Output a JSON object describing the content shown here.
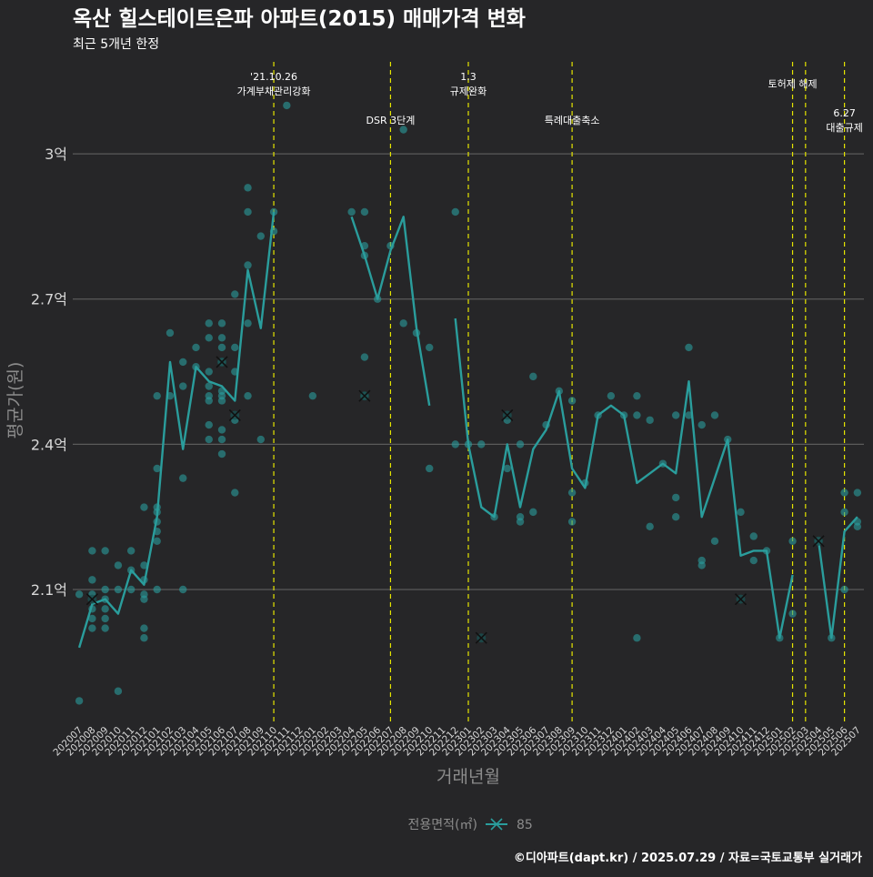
{
  "title": "옥산 힐스테이트은파 아파트(2015) 매매가격 변화",
  "subtitle": "최근 5개년 한정",
  "footer": "©디아파트(dapt.kr) / 2025.07.29 / 자료=국토교통부 실거래가",
  "colors": {
    "background": "#262628",
    "grid": "#5a5a5a",
    "series": "#2a9d9c",
    "event_line": "#e6e600",
    "tick_text": "#d8d8d8",
    "axis_title": "#8c8c8c"
  },
  "chart_data": {
    "type": "line",
    "xlabel": "거래년월",
    "ylabel": "평균가(원)",
    "grid": true,
    "legend": {
      "title": "전용면적(㎡)",
      "position": "bottom"
    },
    "y_ticks": [
      {
        "value": 2.1,
        "label": "2.1억"
      },
      {
        "value": 2.4,
        "label": "2.4억"
      },
      {
        "value": 2.7,
        "label": "2.7억"
      },
      {
        "value": 3.0,
        "label": "3억"
      }
    ],
    "ylim": [
      1.82,
      3.19
    ],
    "categories": [
      "202007",
      "202008",
      "202009",
      "202010",
      "202011",
      "202012",
      "202101",
      "202102",
      "202103",
      "202104",
      "202105",
      "202106",
      "202107",
      "202108",
      "202109",
      "202110",
      "202111",
      "202112",
      "202201",
      "202202",
      "202203",
      "202204",
      "202205",
      "202206",
      "202207",
      "202208",
      "202209",
      "202210",
      "202211",
      "202212",
      "202301",
      "202302",
      "202303",
      "202304",
      "202305",
      "202306",
      "202307",
      "202308",
      "202309",
      "202310",
      "202311",
      "202312",
      "202401",
      "202402",
      "202403",
      "202404",
      "202405",
      "202406",
      "202407",
      "202408",
      "202409",
      "202410",
      "202411",
      "202412",
      "202501",
      "202502",
      "202503",
      "202504",
      "202505",
      "202506",
      "202507"
    ],
    "series": [
      {
        "name": "85",
        "values": [
          1.98,
          2.07,
          2.08,
          2.05,
          2.14,
          2.11,
          2.25,
          2.57,
          2.39,
          2.56,
          2.53,
          2.52,
          2.49,
          2.76,
          2.64,
          2.88,
          null,
          null,
          null,
          null,
          null,
          2.87,
          2.79,
          2.7,
          2.8,
          2.87,
          2.64,
          2.48,
          null,
          2.66,
          2.4,
          2.27,
          2.25,
          2.4,
          2.27,
          2.39,
          2.43,
          2.51,
          2.35,
          2.31,
          2.46,
          2.48,
          2.46,
          2.32,
          2.34,
          2.36,
          2.34,
          2.53,
          2.25,
          2.33,
          2.41,
          2.17,
          2.18,
          2.18,
          2.0,
          2.13,
          null,
          2.2,
          2.0,
          2.22,
          2.25
        ]
      }
    ],
    "points": [
      [
        "202007",
        2.09
      ],
      [
        "202007",
        1.87
      ],
      [
        "202008",
        2.09
      ],
      [
        "202008",
        2.12
      ],
      [
        "202008",
        2.06
      ],
      [
        "202008",
        2.04
      ],
      [
        "202008",
        2.02
      ],
      [
        "202008",
        2.18
      ],
      [
        "202009",
        2.1
      ],
      [
        "202009",
        2.08
      ],
      [
        "202009",
        2.06
      ],
      [
        "202009",
        2.04
      ],
      [
        "202009",
        2.02
      ],
      [
        "202009",
        2.18
      ],
      [
        "202010",
        1.89
      ],
      [
        "202010",
        2.1
      ],
      [
        "202010",
        2.15
      ],
      [
        "202011",
        2.1
      ],
      [
        "202011",
        2.18
      ],
      [
        "202011",
        2.14
      ],
      [
        "202012",
        2.02
      ],
      [
        "202012",
        2.0
      ],
      [
        "202012",
        2.08
      ],
      [
        "202012",
        2.09
      ],
      [
        "202012",
        2.12
      ],
      [
        "202012",
        2.15
      ],
      [
        "202012",
        2.27
      ],
      [
        "202101",
        2.1
      ],
      [
        "202101",
        2.22
      ],
      [
        "202101",
        2.2
      ],
      [
        "202101",
        2.24
      ],
      [
        "202101",
        2.26
      ],
      [
        "202101",
        2.27
      ],
      [
        "202101",
        2.35
      ],
      [
        "202101",
        2.5
      ],
      [
        "202102",
        2.5
      ],
      [
        "202102",
        2.63
      ],
      [
        "202103",
        2.1
      ],
      [
        "202103",
        2.33
      ],
      [
        "202103",
        2.52
      ],
      [
        "202103",
        2.57
      ],
      [
        "202104",
        2.56
      ],
      [
        "202104",
        2.6
      ],
      [
        "202105",
        2.41
      ],
      [
        "202105",
        2.44
      ],
      [
        "202105",
        2.49
      ],
      [
        "202105",
        2.5
      ],
      [
        "202105",
        2.52
      ],
      [
        "202105",
        2.55
      ],
      [
        "202105",
        2.62
      ],
      [
        "202105",
        2.65
      ],
      [
        "202106",
        2.38
      ],
      [
        "202106",
        2.41
      ],
      [
        "202106",
        2.43
      ],
      [
        "202106",
        2.49
      ],
      [
        "202106",
        2.5
      ],
      [
        "202106",
        2.51
      ],
      [
        "202106",
        2.57
      ],
      [
        "202106",
        2.6
      ],
      [
        "202106",
        2.62
      ],
      [
        "202106",
        2.65
      ],
      [
        "202107",
        2.3
      ],
      [
        "202107",
        2.45
      ],
      [
        "202107",
        2.55
      ],
      [
        "202107",
        2.6
      ],
      [
        "202107",
        2.71
      ],
      [
        "202108",
        2.5
      ],
      [
        "202108",
        2.65
      ],
      [
        "202108",
        2.77
      ],
      [
        "202108",
        2.88
      ],
      [
        "202108",
        2.93
      ],
      [
        "202109",
        2.41
      ],
      [
        "202109",
        2.83
      ],
      [
        "202110",
        2.88
      ],
      [
        "202110",
        2.84
      ],
      [
        "202111",
        3.1
      ],
      [
        "202201",
        2.5
      ],
      [
        "202204",
        2.88
      ],
      [
        "202205",
        2.5
      ],
      [
        "202205",
        2.58
      ],
      [
        "202205",
        2.79
      ],
      [
        "202205",
        2.81
      ],
      [
        "202205",
        2.88
      ],
      [
        "202206",
        2.7
      ],
      [
        "202207",
        2.81
      ],
      [
        "202208",
        2.65
      ],
      [
        "202208",
        3.05
      ],
      [
        "202209",
        2.63
      ],
      [
        "202210",
        2.35
      ],
      [
        "202210",
        2.6
      ],
      [
        "202212",
        2.4
      ],
      [
        "202212",
        2.88
      ],
      [
        "202301",
        2.4
      ],
      [
        "202302",
        2.4
      ],
      [
        "202303",
        2.25
      ],
      [
        "202304",
        2.35
      ],
      [
        "202304",
        2.45
      ],
      [
        "202305",
        2.24
      ],
      [
        "202305",
        2.25
      ],
      [
        "202305",
        2.4
      ],
      [
        "202306",
        2.26
      ],
      [
        "202306",
        2.54
      ],
      [
        "202307",
        2.44
      ],
      [
        "202308",
        2.51
      ],
      [
        "202309",
        2.24
      ],
      [
        "202309",
        2.3
      ],
      [
        "202309",
        2.49
      ],
      [
        "202310",
        2.32
      ],
      [
        "202311",
        2.46
      ],
      [
        "202312",
        2.5
      ],
      [
        "202401",
        2.46
      ],
      [
        "202402",
        2.0
      ],
      [
        "202402",
        2.46
      ],
      [
        "202402",
        2.5
      ],
      [
        "202403",
        2.23
      ],
      [
        "202403",
        2.45
      ],
      [
        "202404",
        2.36
      ],
      [
        "202405",
        2.25
      ],
      [
        "202405",
        2.29
      ],
      [
        "202405",
        2.46
      ],
      [
        "202406",
        2.46
      ],
      [
        "202406",
        2.6
      ],
      [
        "202407",
        2.15
      ],
      [
        "202407",
        2.16
      ],
      [
        "202407",
        2.44
      ],
      [
        "202408",
        2.2
      ],
      [
        "202408",
        2.46
      ],
      [
        "202409",
        2.41
      ],
      [
        "202410",
        2.26
      ],
      [
        "202411",
        2.16
      ],
      [
        "202411",
        2.21
      ],
      [
        "202412",
        2.18
      ],
      [
        "202501",
        2.0
      ],
      [
        "202502",
        2.05
      ],
      [
        "202502",
        2.2
      ],
      [
        "202504",
        2.2
      ],
      [
        "202505",
        2.0
      ],
      [
        "202506",
        2.1
      ],
      [
        "202506",
        2.26
      ],
      [
        "202506",
        2.3
      ],
      [
        "202507",
        2.23
      ],
      [
        "202507",
        2.24
      ],
      [
        "202507",
        2.3
      ]
    ],
    "markers": [
      [
        "202008",
        2.08
      ],
      [
        "202106",
        2.57
      ],
      [
        "202107",
        2.46
      ],
      [
        "202205",
        2.5
      ],
      [
        "202302",
        2.0
      ],
      [
        "202304",
        2.46
      ],
      [
        "202410",
        2.08
      ],
      [
        "202504",
        2.2
      ]
    ],
    "events": [
      {
        "x": "202110",
        "lines": [
          "'21.10.26",
          "가계부채관리강화"
        ],
        "row": 0
      },
      {
        "x": "202207",
        "lines": [
          "DSR 3단계"
        ],
        "row": 1
      },
      {
        "x": "202301",
        "lines": [
          "1.3",
          "규제완화"
        ],
        "row": 0
      },
      {
        "x": "202309",
        "lines": [
          "특례대출축소"
        ],
        "row": 1
      },
      {
        "x": "202502",
        "lines": [
          "토허제 해제"
        ],
        "row": 0
      },
      {
        "x": "202503",
        "lines": [],
        "row": 0
      },
      {
        "x": "202506",
        "lines": [
          "6.27",
          "대출규제"
        ],
        "row": 1
      }
    ]
  }
}
